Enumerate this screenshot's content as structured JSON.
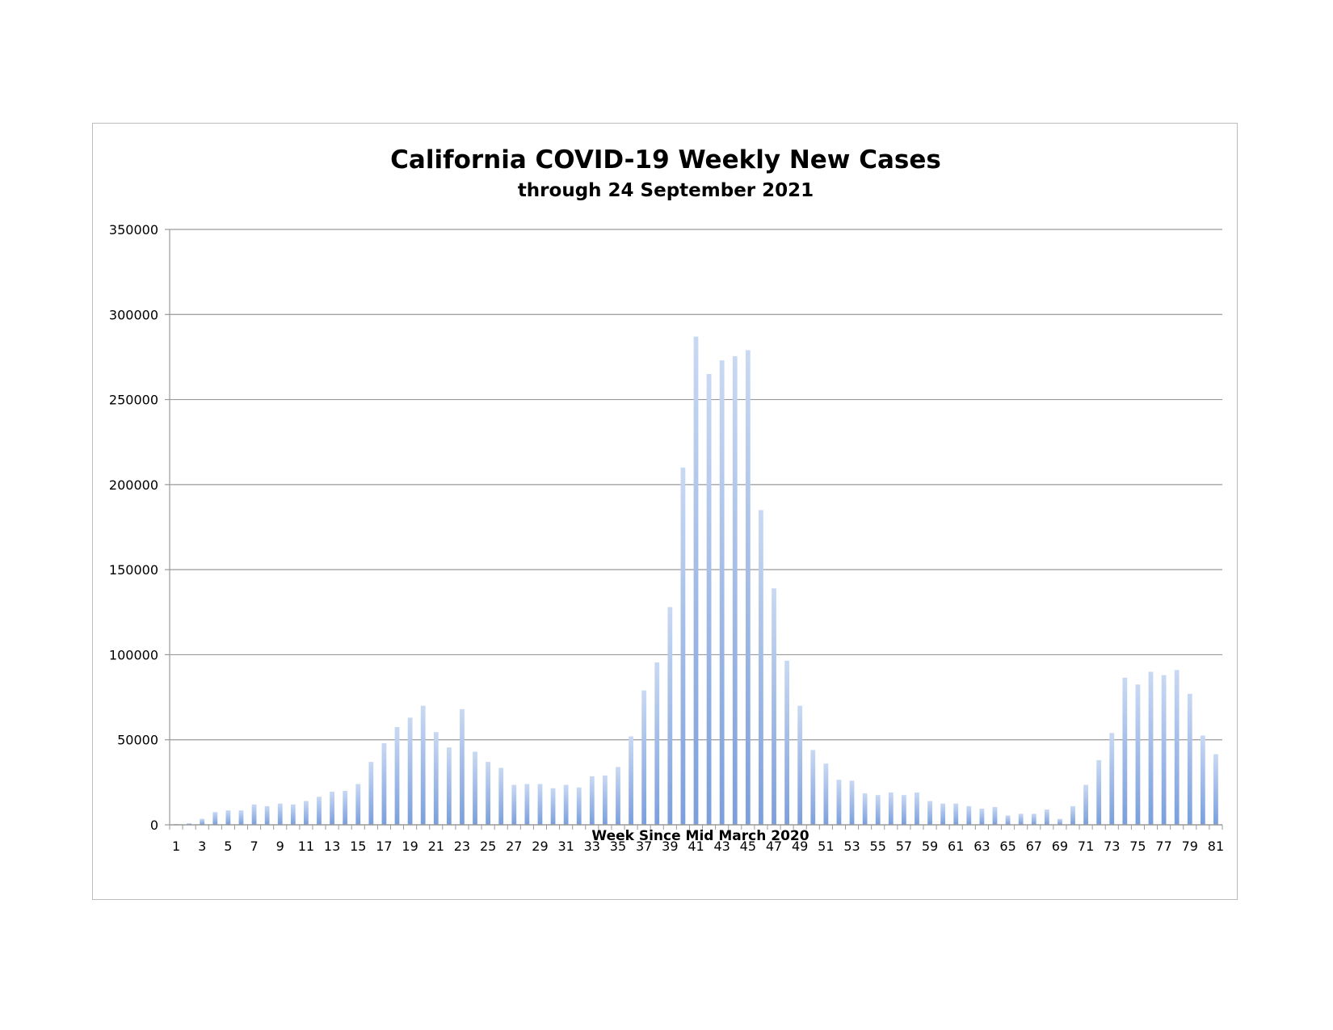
{
  "chart_data": {
    "type": "bar",
    "title": "California COVID-19 Weekly New Cases",
    "subtitle": "through 24 September 2021",
    "xlabel": "Week Since Mid March 2020",
    "ylabel": "",
    "ylim": [
      0,
      350000
    ],
    "yticks": [
      0,
      50000,
      100000,
      150000,
      200000,
      250000,
      300000,
      350000
    ],
    "xticks_shown_every": 2,
    "grid": true,
    "legend": "none",
    "bar_color": "#7b9fdc",
    "bar_highlight": "#c9d9f3",
    "categories": [
      1,
      2,
      3,
      4,
      5,
      6,
      7,
      8,
      9,
      10,
      11,
      12,
      13,
      14,
      15,
      16,
      17,
      18,
      19,
      20,
      21,
      22,
      23,
      24,
      25,
      26,
      27,
      28,
      29,
      30,
      31,
      32,
      33,
      34,
      35,
      36,
      37,
      38,
      39,
      40,
      41,
      42,
      43,
      44,
      45,
      46,
      47,
      48,
      49,
      50,
      51,
      52,
      53,
      54,
      55,
      56,
      57,
      58,
      59,
      60,
      61,
      62,
      63,
      64,
      65,
      66,
      67,
      68,
      69,
      70,
      71,
      72,
      73,
      74,
      75,
      76,
      77,
      78,
      79,
      80,
      81
    ],
    "values": [
      500,
      900,
      3500,
      7500,
      8500,
      8500,
      12000,
      11000,
      12500,
      12000,
      14000,
      16500,
      19500,
      20000,
      24000,
      37000,
      48000,
      57500,
      63000,
      70000,
      54500,
      45500,
      68000,
      43000,
      37000,
      33500,
      23500,
      24000,
      24000,
      21500,
      23500,
      22000,
      28500,
      29000,
      34000,
      52000,
      79000,
      95500,
      128000,
      210000,
      287000,
      265000,
      273000,
      275500,
      279000,
      185000,
      139000,
      96500,
      70000,
      44000,
      36000,
      26500,
      26000,
      18500,
      17500,
      19000,
      17500,
      19000,
      14000,
      12500,
      12500,
      11000,
      9500,
      10500,
      5500,
      6500,
      6500,
      9000,
      3500,
      11000,
      23500,
      38000,
      54000,
      86500,
      82500,
      90000,
      88000,
      91000,
      77000,
      52500,
      41500
    ]
  }
}
